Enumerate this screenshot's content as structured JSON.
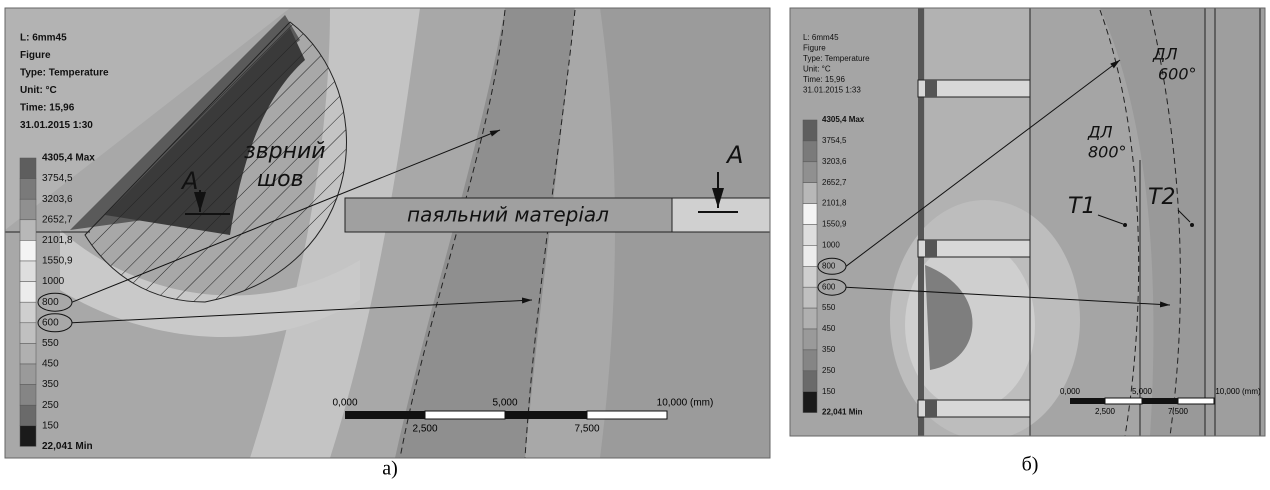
{
  "panels": [
    {
      "header": [
        "L: 6mm45",
        "Figure",
        "Type: Temperature",
        "Unit: °C",
        "Time: 15,96",
        "31.01.2015 1:30"
      ],
      "legend": [
        "4305,4 Max",
        "3754,5",
        "3203,6",
        "2652,7",
        "2101,8",
        "1550,9",
        "1000",
        "800",
        "600",
        "550",
        "450",
        "350",
        "250",
        "150",
        "22,041 Min"
      ],
      "annotations": [
        "зврний",
        "шов",
        "паяльний матеріал",
        "A",
        "A"
      ],
      "scale": [
        "0,000",
        "5,000",
        "10,000 (mm)",
        "2,500",
        "7,500"
      ],
      "caption": "а)"
    },
    {
      "header": [
        "L: 6mm45",
        "Figure",
        "Type: Temperature",
        "Unit: °C",
        "Time: 15,96",
        "31.01.2015 1:33"
      ],
      "legend": [
        "4305,4 Max",
        "3754,5",
        "3203,6",
        "2652,7",
        "2101,8",
        "1550,9",
        "1000",
        "800",
        "600",
        "550",
        "450",
        "350",
        "250",
        "150",
        "22,041 Min"
      ],
      "annotations": [
        "ДЛ",
        "600°",
        "ДЛ",
        "800°",
        "T1",
        "T2"
      ],
      "scale": [
        "0,000",
        "5,000",
        "10,000 (mm)",
        "2,500",
        "7,500"
      ],
      "caption": "б)"
    }
  ]
}
